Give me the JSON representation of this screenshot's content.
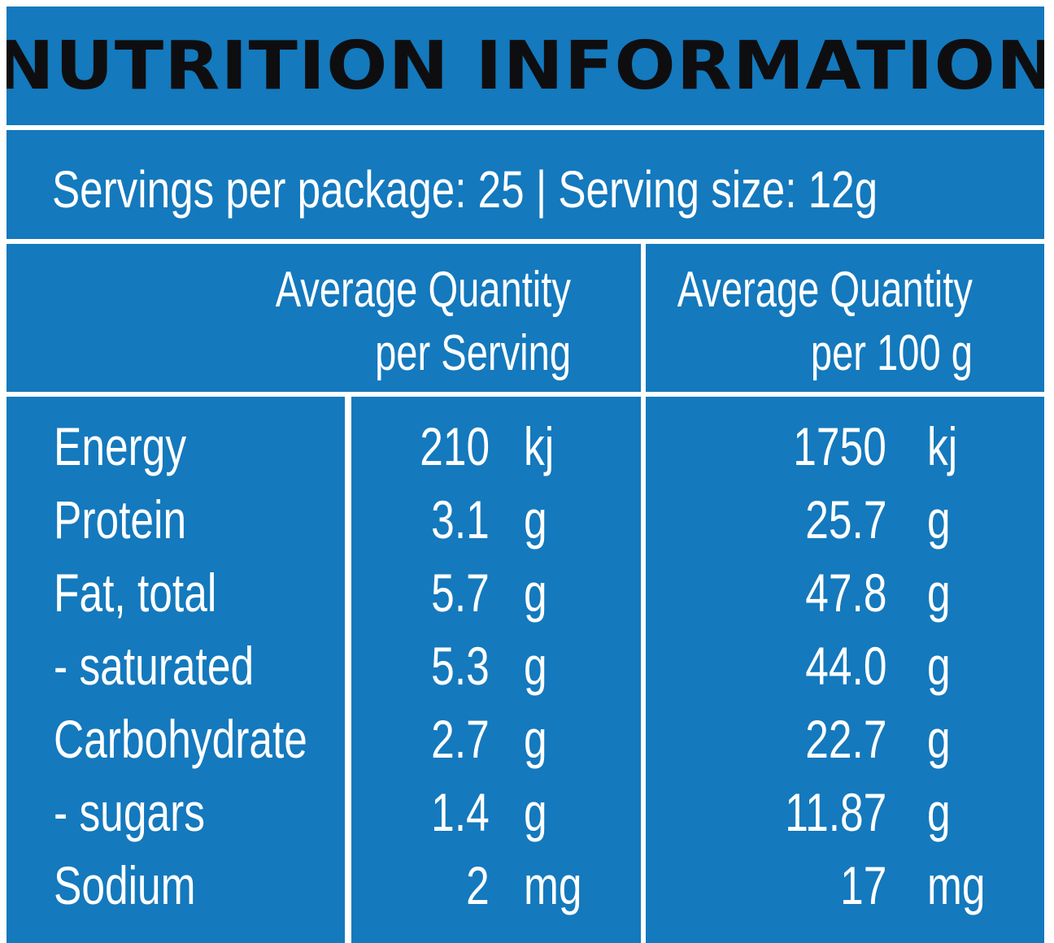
{
  "title": "NUTRITION INFORMATION",
  "servings_line": "Servings per package: 25 | Serving size: 12g",
  "headers": {
    "per_serving": [
      "Average Quantity",
      "per Serving"
    ],
    "per_100g": [
      "Average Quantity",
      "per 100 g"
    ]
  },
  "rows": [
    {
      "label": "Energy",
      "serving_value": "210",
      "serving_unit": "kj",
      "per100_value": "1750",
      "per100_unit": "kj"
    },
    {
      "label": "Protein",
      "serving_value": "3.1",
      "serving_unit": "g",
      "per100_value": "25.7",
      "per100_unit": "g"
    },
    {
      "label": "Fat, total",
      "serving_value": "5.7",
      "serving_unit": "g",
      "per100_value": "47.8",
      "per100_unit": "g"
    },
    {
      "label": "- saturated",
      "serving_value": "5.3",
      "serving_unit": "g",
      "per100_value": "44.0",
      "per100_unit": "g"
    },
    {
      "label": "Carbohydrate",
      "serving_value": "2.7",
      "serving_unit": "g",
      "per100_value": "22.7",
      "per100_unit": "g"
    },
    {
      "label": "- sugars",
      "serving_value": "1.4",
      "serving_unit": "g",
      "per100_value": "11.87",
      "per100_unit": "g"
    },
    {
      "label": "Sodium",
      "serving_value": "2",
      "serving_unit": "mg",
      "per100_value": "17",
      "per100_unit": "mg"
    }
  ],
  "colors": {
    "panel_blue": "#1479bd",
    "border_white": "#ffffff",
    "title_text": "#0e0e10",
    "body_text": "#ffffff"
  }
}
